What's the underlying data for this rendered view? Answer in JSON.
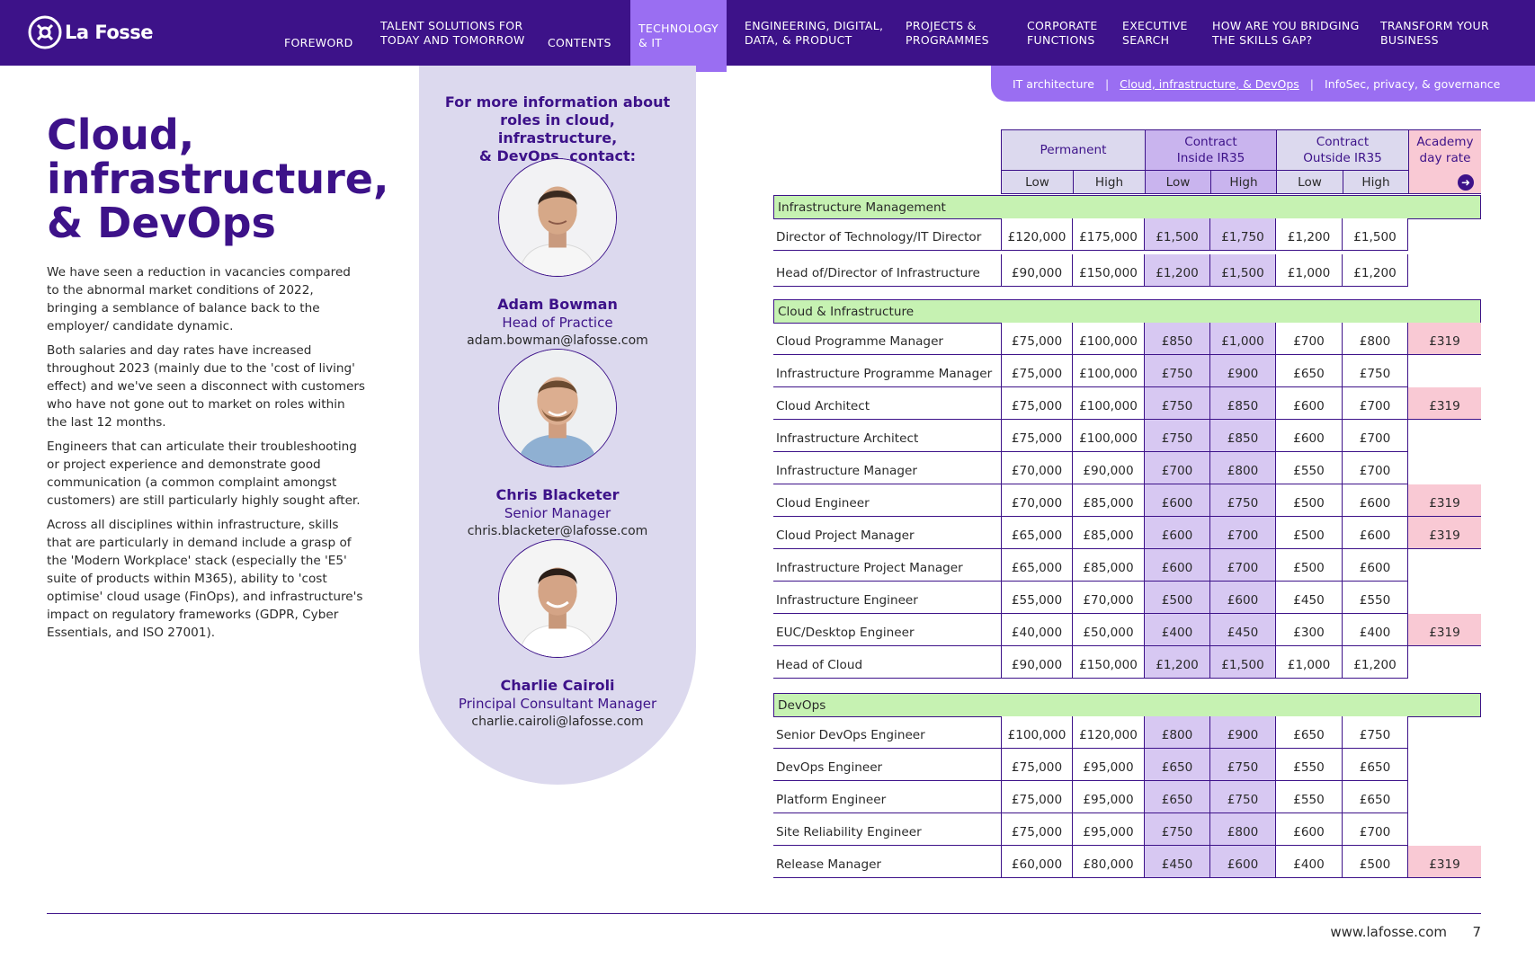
{
  "brand": {
    "name": "La Fosse"
  },
  "nav": {
    "items": [
      {
        "label": "FOREWORD"
      },
      {
        "label": "TALENT SOLUTIONS FOR",
        "label2": "TODAY AND TOMORROW"
      },
      {
        "label": "CONTENTS"
      },
      {
        "label": "TECHNOLOGY",
        "label2": "& IT"
      },
      {
        "label": "ENGINEERING, DIGITAL,",
        "label2": "DATA, & PRODUCT"
      },
      {
        "label": "PROJECTS &",
        "label2": "PROGRAMMES"
      },
      {
        "label": "CORPORATE",
        "label2": "FUNCTIONS"
      },
      {
        "label": "EXECUTIVE",
        "label2": "SEARCH"
      },
      {
        "label": "HOW ARE YOU BRIDGING",
        "label2": "THE SKILLS GAP?"
      },
      {
        "label": "TRANSFORM YOUR",
        "label2": "BUSINESS"
      }
    ],
    "active_index": 3
  },
  "subnav": {
    "items": [
      "IT architecture",
      "Cloud, infrastructure, & DevOps",
      "InfoSec, privacy, & governance"
    ],
    "separator": "|"
  },
  "page": {
    "title_lines": [
      "Cloud,",
      "infrastructure,",
      "& DevOps"
    ],
    "paragraphs": [
      "We have seen a reduction in vacancies compared to the abnormal market conditions of 2022, bringing a semblance of balance back to the employer/ candidate dynamic.",
      "Both salaries and day rates have increased throughout 2023 (mainly due to the 'cost of living' effect) and we've seen a disconnect with customers who have not gone out to market on roles within the last 12 months.",
      "Engineers that can articulate their troubleshooting or project experience and demonstrate good communication (a common complaint amongst customers) are still particularly highly sought after.",
      "Across all disciplines within infrastructure, skills that are particularly in demand include a grasp of the 'Modern Workplace' stack (especially the 'E5' suite of products within M365), ability to 'cost optimise' cloud usage (FinOps), and infrastructure's impact on regulatory frameworks (GDPR, Cyber Essentials, and ISO 27001)."
    ]
  },
  "contact": {
    "heading_lines": [
      "For more information about",
      "roles in cloud, infrastructure,",
      "& DevOps, contact:"
    ],
    "people": [
      {
        "name": "Adam Bowman",
        "role": "Head of Practice",
        "email": "adam.bowman@lafosse.com"
      },
      {
        "name": "Chris Blacketer",
        "role": "Senior Manager",
        "email": "chris.blacketer@lafosse.com"
      },
      {
        "name": "Charlie Cairoli",
        "role": "Principal Consultant Manager",
        "email": "charlie.cairoli@lafosse.com"
      }
    ]
  },
  "table": {
    "group_headers": [
      "Permanent",
      "Contract Inside IR35",
      "Contract Outside IR35",
      "Academy day rate"
    ],
    "group_header_lines": [
      [
        "Permanent"
      ],
      [
        "Contract",
        "Inside IR35"
      ],
      [
        "Contract",
        "Outside IR35"
      ],
      [
        "Academy",
        "day rate"
      ]
    ],
    "sub_headers": [
      "Low",
      "High",
      "Low",
      "High",
      "Low",
      "High"
    ],
    "colors": {
      "permanent_header": "#dcd9ee",
      "contract_inside_header": "#c9b4ee",
      "contract_outside_header": "#dcd9ee",
      "academy": "#f9c9d4",
      "section": "#c6f2b2",
      "contract_inside_cells": "#d7c8f2",
      "brand": "#3d1289",
      "accent": "#9a6ef2"
    },
    "sections": [
      {
        "name": "Infrastructure Management",
        "rows": [
          {
            "role": "Director of Technology/IT Director",
            "values": [
              "£120,000",
              "£175,000",
              "£1,500",
              "£1,750",
              "£1,200",
              "£1,500"
            ],
            "academy": ""
          },
          {
            "role": "Head of/Director of Infrastructure",
            "values": [
              "£90,000",
              "£150,000",
              "£1,200",
              "£1,500",
              "£1,000",
              "£1,200"
            ],
            "academy": ""
          }
        ]
      },
      {
        "name": "Cloud & Infrastructure",
        "rows": [
          {
            "role": "Cloud Programme Manager",
            "values": [
              "£75,000",
              "£100,000",
              "£850",
              "£1,000",
              "£700",
              "£800"
            ],
            "academy": "£319"
          },
          {
            "role": "Infrastructure Programme Manager",
            "values": [
              "£75,000",
              "£100,000",
              "£750",
              "£900",
              "£650",
              "£750"
            ],
            "academy": ""
          },
          {
            "role": "Cloud Architect",
            "values": [
              "£75,000",
              "£100,000",
              "£750",
              "£850",
              "£600",
              "£700"
            ],
            "academy": "£319"
          },
          {
            "role": "Infrastructure Architect",
            "values": [
              "£75,000",
              "£100,000",
              "£750",
              "£850",
              "£600",
              "£700"
            ],
            "academy": ""
          },
          {
            "role": "Infrastructure Manager",
            "values": [
              "£70,000",
              "£90,000",
              "£700",
              "£800",
              "£550",
              "£700"
            ],
            "academy": ""
          },
          {
            "role": "Cloud Engineer",
            "values": [
              "£70,000",
              "£85,000",
              "£600",
              "£750",
              "£500",
              "£600"
            ],
            "academy": "£319"
          },
          {
            "role": "Cloud Project Manager",
            "values": [
              "£65,000",
              "£85,000",
              "£600",
              "£700",
              "£500",
              "£600"
            ],
            "academy": "£319"
          },
          {
            "role": "Infrastructure Project Manager",
            "values": [
              "£65,000",
              "£85,000",
              "£600",
              "£700",
              "£500",
              "£600"
            ],
            "academy": ""
          },
          {
            "role": "Infrastructure Engineer",
            "values": [
              "£55,000",
              "£70,000",
              "£500",
              "£600",
              "£450",
              "£550"
            ],
            "academy": ""
          },
          {
            "role": "EUC/Desktop Engineer",
            "values": [
              "£40,000",
              "£50,000",
              "£400",
              "£450",
              "£300",
              "£400"
            ],
            "academy": "£319"
          },
          {
            "role": "Head of Cloud",
            "values": [
              "£90,000",
              "£150,000",
              "£1,200",
              "£1,500",
              "£1,000",
              "£1,200"
            ],
            "academy": ""
          }
        ]
      },
      {
        "name": "DevOps",
        "rows": [
          {
            "role": "Senior DevOps Engineer",
            "values": [
              "£100,000",
              "£120,000",
              "£800",
              "£900",
              "£650",
              "£750"
            ],
            "academy": ""
          },
          {
            "role": "DevOps Engineer",
            "values": [
              "£75,000",
              "£95,000",
              "£650",
              "£750",
              "£550",
              "£650"
            ],
            "academy": ""
          },
          {
            "role": "Platform Engineer",
            "values": [
              "£75,000",
              "£95,000",
              "£650",
              "£750",
              "£550",
              "£650"
            ],
            "academy": ""
          },
          {
            "role": "Site Reliability Engineer",
            "values": [
              "£75,000",
              "£95,000",
              "£750",
              "£800",
              "£600",
              "£700"
            ],
            "academy": ""
          },
          {
            "role": "Release Manager",
            "values": [
              "£60,000",
              "£80,000",
              "£450",
              "£600",
              "£400",
              "£500"
            ],
            "academy": "£319"
          }
        ]
      }
    ]
  },
  "footer": {
    "url": "www.lafosse.com",
    "page_number": "7"
  }
}
